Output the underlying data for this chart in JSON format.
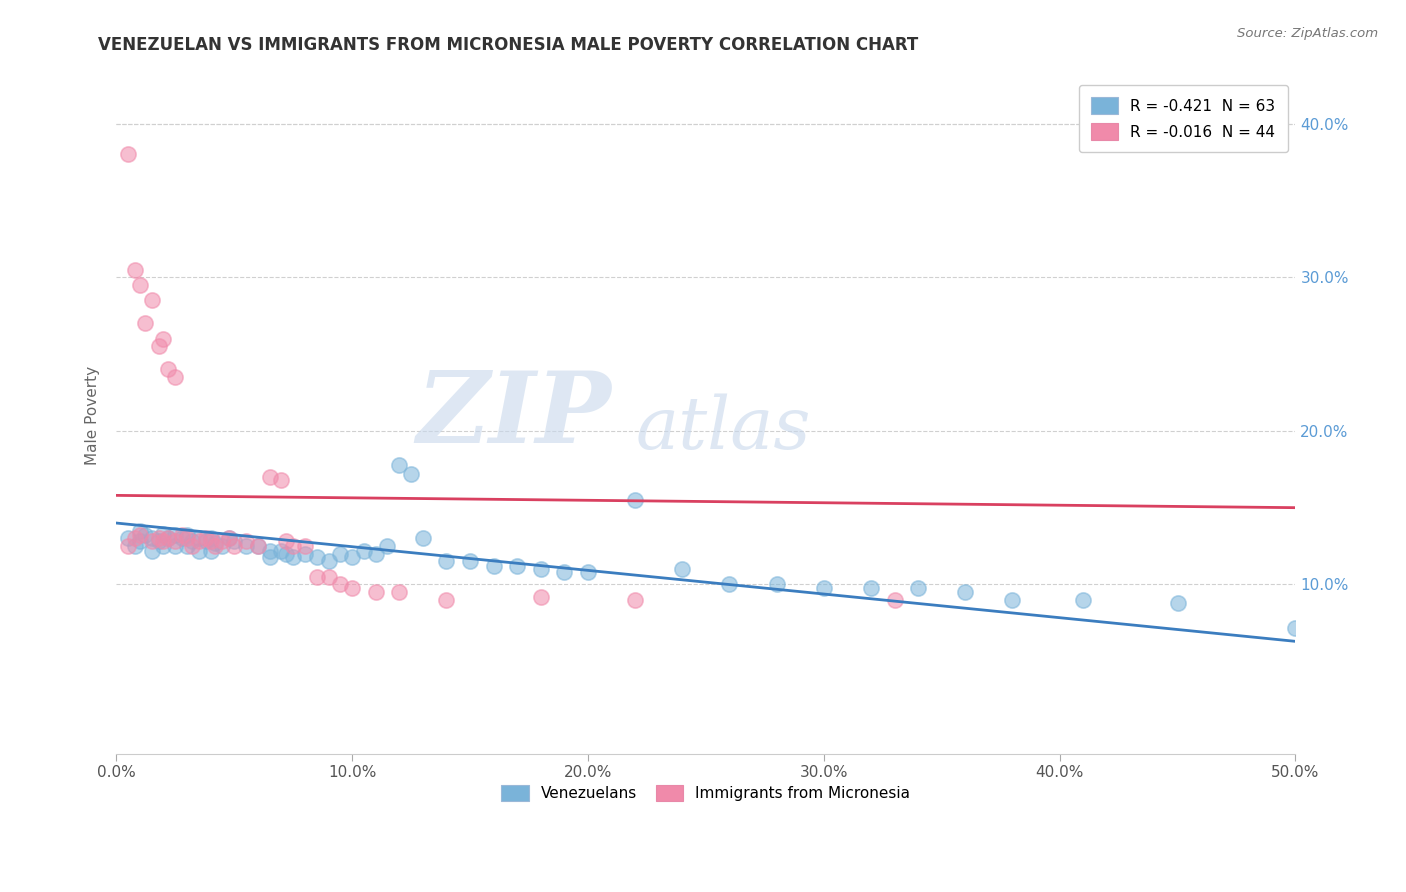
{
  "title": "VENEZUELAN VS IMMIGRANTS FROM MICRONESIA MALE POVERTY CORRELATION CHART",
  "source": "Source: ZipAtlas.com",
  "xlabel_ticks": [
    "0.0%",
    "10.0%",
    "20.0%",
    "30.0%",
    "40.0%",
    "50.0%"
  ],
  "ylabel_ticks": [
    "10.0%",
    "20.0%",
    "30.0%",
    "40.0%"
  ],
  "xlim": [
    0.0,
    0.5
  ],
  "ylim": [
    -0.01,
    0.43
  ],
  "legend_entries": [
    {
      "label": "R = -0.421  N = 63",
      "color": "#a8c8e8"
    },
    {
      "label": "R = -0.016  N = 44",
      "color": "#f4b8cc"
    }
  ],
  "legend_labels": [
    "Venezuelans",
    "Immigrants from Micronesia"
  ],
  "venezuelan_scatter": [
    [
      0.005,
      0.13
    ],
    [
      0.008,
      0.125
    ],
    [
      0.01,
      0.135
    ],
    [
      0.01,
      0.128
    ],
    [
      0.012,
      0.132
    ],
    [
      0.015,
      0.13
    ],
    [
      0.015,
      0.122
    ],
    [
      0.018,
      0.128
    ],
    [
      0.02,
      0.133
    ],
    [
      0.02,
      0.125
    ],
    [
      0.022,
      0.13
    ],
    [
      0.025,
      0.132
    ],
    [
      0.025,
      0.125
    ],
    [
      0.028,
      0.13
    ],
    [
      0.03,
      0.132
    ],
    [
      0.03,
      0.125
    ],
    [
      0.032,
      0.128
    ],
    [
      0.035,
      0.13
    ],
    [
      0.035,
      0.122
    ],
    [
      0.038,
      0.128
    ],
    [
      0.04,
      0.13
    ],
    [
      0.04,
      0.122
    ],
    [
      0.042,
      0.127
    ],
    [
      0.045,
      0.125
    ],
    [
      0.048,
      0.13
    ],
    [
      0.05,
      0.128
    ],
    [
      0.055,
      0.125
    ],
    [
      0.06,
      0.125
    ],
    [
      0.065,
      0.122
    ],
    [
      0.065,
      0.118
    ],
    [
      0.07,
      0.122
    ],
    [
      0.072,
      0.12
    ],
    [
      0.075,
      0.118
    ],
    [
      0.08,
      0.12
    ],
    [
      0.085,
      0.118
    ],
    [
      0.09,
      0.115
    ],
    [
      0.095,
      0.12
    ],
    [
      0.1,
      0.118
    ],
    [
      0.105,
      0.122
    ],
    [
      0.11,
      0.12
    ],
    [
      0.115,
      0.125
    ],
    [
      0.12,
      0.178
    ],
    [
      0.125,
      0.172
    ],
    [
      0.13,
      0.13
    ],
    [
      0.14,
      0.115
    ],
    [
      0.15,
      0.115
    ],
    [
      0.16,
      0.112
    ],
    [
      0.17,
      0.112
    ],
    [
      0.18,
      0.11
    ],
    [
      0.19,
      0.108
    ],
    [
      0.2,
      0.108
    ],
    [
      0.22,
      0.155
    ],
    [
      0.24,
      0.11
    ],
    [
      0.26,
      0.1
    ],
    [
      0.28,
      0.1
    ],
    [
      0.3,
      0.098
    ],
    [
      0.32,
      0.098
    ],
    [
      0.34,
      0.098
    ],
    [
      0.36,
      0.095
    ],
    [
      0.38,
      0.09
    ],
    [
      0.41,
      0.09
    ],
    [
      0.45,
      0.088
    ],
    [
      0.5,
      0.072
    ]
  ],
  "micronesia_scatter": [
    [
      0.005,
      0.38
    ],
    [
      0.008,
      0.305
    ],
    [
      0.01,
      0.295
    ],
    [
      0.012,
      0.27
    ],
    [
      0.015,
      0.285
    ],
    [
      0.018,
      0.255
    ],
    [
      0.02,
      0.26
    ],
    [
      0.022,
      0.24
    ],
    [
      0.025,
      0.235
    ],
    [
      0.005,
      0.125
    ],
    [
      0.008,
      0.13
    ],
    [
      0.01,
      0.132
    ],
    [
      0.015,
      0.128
    ],
    [
      0.018,
      0.13
    ],
    [
      0.02,
      0.128
    ],
    [
      0.022,
      0.13
    ],
    [
      0.025,
      0.128
    ],
    [
      0.028,
      0.132
    ],
    [
      0.03,
      0.13
    ],
    [
      0.032,
      0.125
    ],
    [
      0.035,
      0.128
    ],
    [
      0.038,
      0.13
    ],
    [
      0.04,
      0.128
    ],
    [
      0.042,
      0.125
    ],
    [
      0.045,
      0.128
    ],
    [
      0.048,
      0.13
    ],
    [
      0.05,
      0.125
    ],
    [
      0.055,
      0.128
    ],
    [
      0.06,
      0.125
    ],
    [
      0.065,
      0.17
    ],
    [
      0.07,
      0.168
    ],
    [
      0.072,
      0.128
    ],
    [
      0.075,
      0.125
    ],
    [
      0.08,
      0.125
    ],
    [
      0.085,
      0.105
    ],
    [
      0.09,
      0.105
    ],
    [
      0.095,
      0.1
    ],
    [
      0.1,
      0.098
    ],
    [
      0.11,
      0.095
    ],
    [
      0.12,
      0.095
    ],
    [
      0.14,
      0.09
    ],
    [
      0.18,
      0.092
    ],
    [
      0.22,
      0.09
    ],
    [
      0.33,
      0.09
    ]
  ],
  "venezuelan_line": {
    "x": [
      0.0,
      0.5
    ],
    "y": [
      0.14,
      0.063
    ]
  },
  "micronesia_line": {
    "x": [
      0.0,
      0.5
    ],
    "y": [
      0.158,
      0.15
    ]
  },
  "scatter_color_venezuelan": "#7ab3d9",
  "scatter_color_micronesia": "#f08aaa",
  "line_color_venezuelan": "#3b7dbf",
  "line_color_micronesia": "#d94060",
  "watermark_zip": "ZIP",
  "watermark_atlas": "atlas",
  "background_color": "#ffffff",
  "grid_color": "#d0d0d0"
}
